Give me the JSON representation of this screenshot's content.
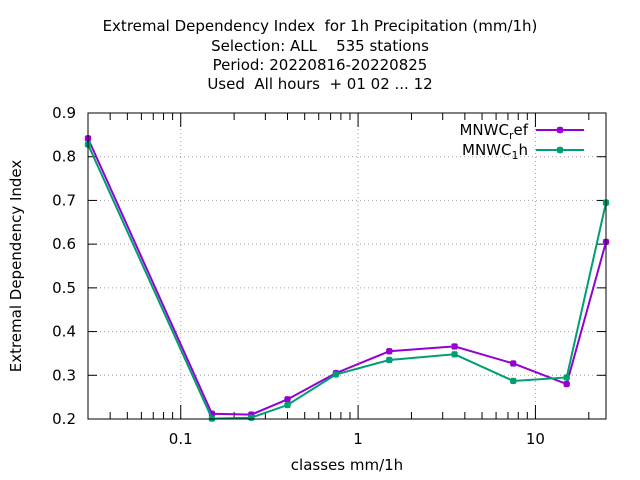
{
  "chart_data": {
    "type": "line",
    "title_lines": [
      "Extremal Dependency Index  for 1h Precipitation (mm/1h)",
      "Selection: ALL    535 stations",
      "Period: 20220816-20220825",
      "Used  All hours  + 01 02 ... 12"
    ],
    "xlabel": "classes mm/1h",
    "ylabel": "Extremal Dependency Index",
    "x_scale": "log",
    "xlim": [
      0.03,
      25
    ],
    "ylim": [
      0.2,
      0.9
    ],
    "x_ticks": [
      {
        "value": 0.1,
        "label": "0.1"
      },
      {
        "value": 1,
        "label": "1"
      },
      {
        "value": 10,
        "label": "10"
      }
    ],
    "y_ticks": [
      {
        "value": 0.2,
        "label": "0.2"
      },
      {
        "value": 0.3,
        "label": "0.3"
      },
      {
        "value": 0.4,
        "label": "0.4"
      },
      {
        "value": 0.5,
        "label": "0.5"
      },
      {
        "value": 0.6,
        "label": "0.6"
      },
      {
        "value": 0.7,
        "label": "0.7"
      },
      {
        "value": 0.8,
        "label": "0.8"
      },
      {
        "value": 0.9,
        "label": "0.9"
      }
    ],
    "grid": true,
    "legend_position": "top-right",
    "x": [
      0.03,
      0.15,
      0.25,
      0.4,
      0.75,
      1.5,
      3.5,
      7.5,
      15,
      25
    ],
    "series": [
      {
        "name_main": "MNWC",
        "name_sub": "r",
        "name_tail": "ef",
        "color": "#9400d3",
        "values": [
          0.842,
          0.212,
          0.21,
          0.245,
          0.305,
          0.355,
          0.366,
          0.327,
          0.28,
          0.605
        ]
      },
      {
        "name_main": "MNWC",
        "name_sub": "1",
        "name_tail": "h",
        "color": "#009e73",
        "values": [
          0.828,
          0.201,
          0.203,
          0.232,
          0.302,
          0.335,
          0.348,
          0.287,
          0.295,
          0.695
        ]
      }
    ]
  }
}
